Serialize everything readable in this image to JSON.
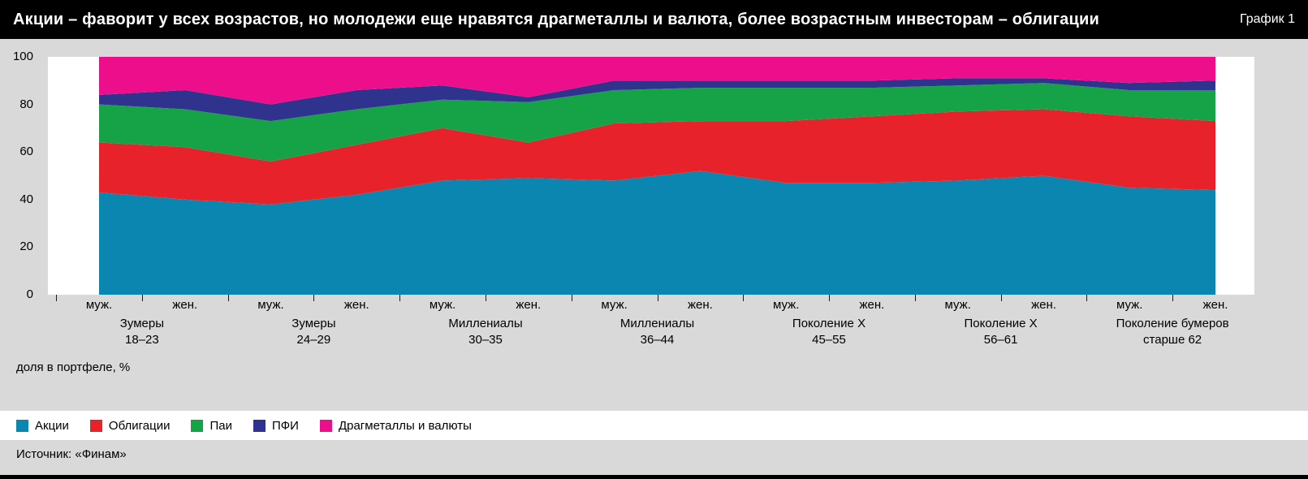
{
  "header": {
    "title": "Акции – фаворит у всех возрастов, но молодежи еще нравятся драгметаллы и валюта, более возрастным инвесторам – облигации",
    "figure_label": "График 1"
  },
  "footer": {
    "source": "Источник: «Финам»"
  },
  "chart_data": {
    "type": "area",
    "stacked": true,
    "title": "Акции – фаворит у всех возрастов, но молодежи еще нравятся драгметаллы и валюта, более возрастным инвесторам – облигации",
    "ylabel": "доля в портфеле, %",
    "ylim": [
      0,
      100
    ],
    "y_ticks": [
      0,
      20,
      40,
      60,
      80,
      100
    ],
    "grid": false,
    "legend_position": "bottom",
    "x_tick_labels": [
      "муж.",
      "жен.",
      "муж.",
      "жен.",
      "муж.",
      "жен.",
      "муж.",
      "жен.",
      "муж.",
      "жен.",
      "муж.",
      "жен.",
      "муж.",
      "жен."
    ],
    "groups": [
      {
        "line1": "Зумеры",
        "line2": "18–23"
      },
      {
        "line1": "Зумеры",
        "line2": "24–29"
      },
      {
        "line1": "Миллениалы",
        "line2": "30–35"
      },
      {
        "line1": "Миллениалы",
        "line2": "36–44"
      },
      {
        "line1": "Поколение X",
        "line2": "45–55"
      },
      {
        "line1": "Поколение X",
        "line2": "56–61"
      },
      {
        "line1": "Поколение бумеров",
        "line2": "старше 62"
      }
    ],
    "series": [
      {
        "name": "Акции",
        "color": "#0b86b1",
        "values": [
          43,
          40,
          38,
          42,
          48,
          49,
          48,
          52,
          47,
          47,
          48,
          50,
          45,
          44
        ]
      },
      {
        "name": "Облигации",
        "color": "#e8222a",
        "values": [
          21,
          22,
          18,
          21,
          22,
          15,
          24,
          21,
          26,
          28,
          29,
          28,
          30,
          29
        ]
      },
      {
        "name": "Паи",
        "color": "#16a348",
        "values": [
          16,
          16,
          17,
          15,
          12,
          17,
          14,
          14,
          14,
          12,
          11,
          11,
          11,
          13
        ]
      },
      {
        "name": "ПФИ",
        "color": "#30338e",
        "values": [
          4,
          8,
          7,
          8,
          6,
          2,
          4,
          3,
          3,
          3,
          3,
          2,
          3,
          4
        ]
      },
      {
        "name": "Драгметаллы и валюты",
        "color": "#ed0e8c",
        "values": [
          16,
          14,
          20,
          14,
          12,
          17,
          10,
          10,
          10,
          10,
          9,
          9,
          11,
          10
        ]
      }
    ]
  }
}
